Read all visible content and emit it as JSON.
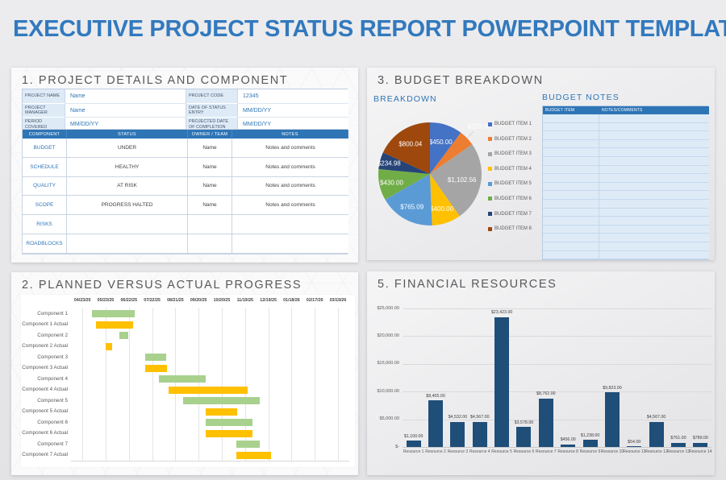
{
  "page_title": "EXECUTIVE PROJECT STATUS REPORT POWERPOINT TEMPLATE",
  "colors": {
    "title_blue": "#3279BE",
    "accent_blue": "#2E75B6",
    "panel_title_gray": "#595959",
    "text_dark": "#404040",
    "table_fill_light_blue": "#DEEBF7",
    "bar_navy": "#1F4E79",
    "gantt_planned_green": "#A9D18E",
    "gantt_actual_yellow": "#FFC000"
  },
  "panel1": {
    "title": "1. PROJECT DETAILS AND COMPONENT",
    "details_rows": [
      {
        "label1": "PROJECT NAME",
        "value1": "Name",
        "label2": "PROJECT CODE",
        "value2": "12345"
      },
      {
        "label1": "PROJECT MANAGER",
        "value1": "Name",
        "label2": "DATE OF STATUS ENTRY",
        "value2": "MM/DD/YY"
      },
      {
        "label1": "PERIOD COVERED",
        "value1": "MM/DD/YY",
        "label2": "PROJECTED DATE OF COMPLETION",
        "value2": "MM/DD/YY"
      }
    ],
    "component_table": {
      "headers": [
        "COMPONENT",
        "STATUS",
        "OWNER / TEAM",
        "NOTES"
      ],
      "rows": [
        {
          "component": "BUDGET",
          "status": "UNDER",
          "owner": "Name",
          "notes": "Notes and comments"
        },
        {
          "component": "SCHEDULE",
          "status": "HEALTHY",
          "owner": "Name",
          "notes": "Notes and comments"
        },
        {
          "component": "QUALITY",
          "status": "AT RISK",
          "owner": "Name",
          "notes": "Notes and comments"
        },
        {
          "component": "SCOPE",
          "status": "PROGRESS HALTED",
          "owner": "Name",
          "notes": "Notes and comments"
        },
        {
          "component": "RISKS",
          "status": "",
          "owner": "",
          "notes": ""
        },
        {
          "component": "ROADBLOCKS",
          "status": "",
          "owner": "",
          "notes": ""
        }
      ]
    }
  },
  "panel2": {
    "title": "2. PLANNED VERSUS ACTUAL PROGRESS"
  },
  "panel3": {
    "title": "3. BUDGET BREAKDOWN",
    "breakdown_subtitle": "BREAKDOWN",
    "notes_subtitle": "BUDGET NOTES",
    "notes_table": {
      "headers": [
        "BUDGET ITEM",
        "NOTES/COMMENTS"
      ],
      "empty_row_count": 17
    }
  },
  "panel5": {
    "title": "5. FINANCIAL RESOURCES"
  },
  "chart_data": [
    {
      "id": "budget_pie",
      "type": "pie",
      "title": "BREAKDOWN",
      "legend_position": "right",
      "labels": [
        "BUDGET ITEM 1",
        "BUDGET ITEM 2",
        "BUDGET ITEM 3",
        "BUDGET ITEM 4",
        "BUDGET ITEM 5",
        "BUDGET ITEM 6",
        "BUDGET ITEM 7",
        "BUDGET ITEM 8"
      ],
      "values": [
        450.0,
        220.0,
        1102.56,
        400.0,
        765.09,
        430.0,
        234.98,
        800.04
      ],
      "value_labels": [
        "$450.00",
        "$220.00",
        "$1,102.56",
        "$400.00",
        "$765.09",
        "$430.00",
        "$234.98",
        "$800.04"
      ],
      "colors": [
        "#4472C4",
        "#ED7D31",
        "#A5A5A5",
        "#FFC000",
        "#5B9BD5",
        "#70AD47",
        "#264478",
        "#9E480E"
      ],
      "outside_label_index": 1
    },
    {
      "id": "gantt",
      "type": "gantt",
      "x_ticks": [
        "04/23/25",
        "05/23/25",
        "06/22/25",
        "07/22/25",
        "08/21/25",
        "09/20/25",
        "10/20/25",
        "11/19/25",
        "12/19/25",
        "01/18/26",
        "02/17/26",
        "03/19/26"
      ],
      "tick_start_frac": 0.041,
      "tick_step_frac": 0.0835,
      "series_colors": {
        "planned": "#A9D18E",
        "actual": "#FFC000"
      },
      "rows": [
        {
          "label": "Component 1",
          "kind": "planned",
          "start": 0.075,
          "end": 0.229
        },
        {
          "label": "Component 1 Actual",
          "kind": "actual",
          "start": 0.09,
          "end": 0.223
        },
        {
          "label": "Component 2",
          "kind": "planned",
          "start": 0.174,
          "end": 0.206
        },
        {
          "label": "Component 2 Actual",
          "kind": "actual",
          "start": 0.125,
          "end": 0.148
        },
        {
          "label": "Component 3",
          "kind": "planned",
          "start": 0.267,
          "end": 0.342
        },
        {
          "label": "Component 3 Actual",
          "kind": "actual",
          "start": 0.267,
          "end": 0.345
        },
        {
          "label": "Component 4",
          "kind": "planned",
          "start": 0.316,
          "end": 0.484
        },
        {
          "label": "Component 4 Actual",
          "kind": "actual",
          "start": 0.351,
          "end": 0.635
        },
        {
          "label": "Component 5",
          "kind": "planned",
          "start": 0.403,
          "end": 0.678
        },
        {
          "label": "Component 5 Actual",
          "kind": "actual",
          "start": 0.484,
          "end": 0.597
        },
        {
          "label": "Component 6",
          "kind": "planned",
          "start": 0.484,
          "end": 0.652
        },
        {
          "label": "Component 6 Actual",
          "kind": "actual",
          "start": 0.484,
          "end": 0.652
        },
        {
          "label": "Component 7",
          "kind": "planned",
          "start": 0.594,
          "end": 0.678
        },
        {
          "label": "Component 7 Actual",
          "kind": "actual",
          "start": 0.594,
          "end": 0.719
        }
      ]
    },
    {
      "id": "financial",
      "type": "bar",
      "bar_color": "#1F4E79",
      "categories": [
        "Resource 1",
        "Resource 2",
        "Resource 3",
        "Resource 4",
        "Resource 5",
        "Resource 6",
        "Resource 7",
        "Resource 8",
        "Resource 9",
        "Resource 10",
        "Resource 11",
        "Resource 12",
        "Resource 13",
        "Resource 14"
      ],
      "values": [
        1100,
        8405,
        4532,
        4567,
        23423,
        3578,
        8762,
        456,
        1238,
        9823,
        54,
        4567,
        761,
        789
      ],
      "value_labels": [
        "$1,100.00",
        "$8,405.00",
        "$4,532.00",
        "$4,567.00",
        "$23,423.00",
        "$3,578.00",
        "$8,762.00",
        "$456.00",
        "$1,238.00",
        "$9,823.00",
        "$54.00",
        "$4,567.00",
        "$761.00",
        "$789.00"
      ],
      "y_ticks": [
        {
          "label": "$25,000.00",
          "value": 25000
        },
        {
          "label": "$20,000.00",
          "value": 20000
        },
        {
          "label": "$15,000.00",
          "value": 15000
        },
        {
          "label": "$10,000.00",
          "value": 10000
        },
        {
          "label": "$5,000.00",
          "value": 5000
        },
        {
          "label": "$-",
          "value": 0
        }
      ],
      "ylim": [
        0,
        25000
      ]
    }
  ]
}
